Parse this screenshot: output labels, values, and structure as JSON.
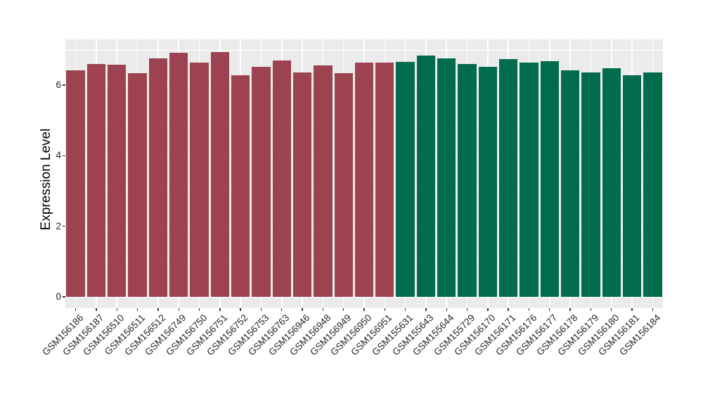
{
  "chart_data": {
    "type": "bar",
    "title": "",
    "xlabel": "",
    "ylabel": "Expression Level",
    "ylim": [
      -0.32,
      7.3
    ],
    "y_major_ticks": [
      0,
      2,
      4,
      6
    ],
    "y_minor_ticks": [
      1,
      3,
      5,
      7
    ],
    "grid": true,
    "legend": "none",
    "panel_bg": "#EBEBEB",
    "grid_color": "#FFFFFF",
    "bar_colors": [
      "#9C4251",
      "#006B4D"
    ],
    "bars": [
      {
        "label": "GSM156186",
        "value": 6.43,
        "group": 0
      },
      {
        "label": "GSM156187",
        "value": 6.6,
        "group": 0
      },
      {
        "label": "GSM156510",
        "value": 6.58,
        "group": 0
      },
      {
        "label": "GSM156511",
        "value": 6.35,
        "group": 0
      },
      {
        "label": "GSM156512",
        "value": 6.76,
        "group": 0
      },
      {
        "label": "GSM156749",
        "value": 6.93,
        "group": 0
      },
      {
        "label": "GSM156750",
        "value": 6.64,
        "group": 0
      },
      {
        "label": "GSM156751",
        "value": 6.94,
        "group": 0
      },
      {
        "label": "GSM156752",
        "value": 6.29,
        "group": 0
      },
      {
        "label": "GSM156753",
        "value": 6.53,
        "group": 0
      },
      {
        "label": "GSM156763",
        "value": 6.7,
        "group": 0
      },
      {
        "label": "GSM156946",
        "value": 6.37,
        "group": 0
      },
      {
        "label": "GSM156948",
        "value": 6.56,
        "group": 0
      },
      {
        "label": "GSM156949",
        "value": 6.35,
        "group": 0
      },
      {
        "label": "GSM156950",
        "value": 6.65,
        "group": 0
      },
      {
        "label": "GSM156951",
        "value": 6.65,
        "group": 0
      },
      {
        "label": "GSM155631",
        "value": 6.66,
        "group": 1
      },
      {
        "label": "GSM155643",
        "value": 6.84,
        "group": 1
      },
      {
        "label": "GSM155644",
        "value": 6.76,
        "group": 1
      },
      {
        "label": "GSM155729",
        "value": 6.6,
        "group": 1
      },
      {
        "label": "GSM156170",
        "value": 6.52,
        "group": 1
      },
      {
        "label": "GSM156171",
        "value": 6.74,
        "group": 1
      },
      {
        "label": "GSM156176",
        "value": 6.64,
        "group": 1
      },
      {
        "label": "GSM156177",
        "value": 6.68,
        "group": 1
      },
      {
        "label": "GSM156178",
        "value": 6.43,
        "group": 1
      },
      {
        "label": "GSM156179",
        "value": 6.37,
        "group": 1
      },
      {
        "label": "GSM156180",
        "value": 6.48,
        "group": 1
      },
      {
        "label": "GSM156181",
        "value": 6.28,
        "group": 1
      },
      {
        "label": "GSM156184",
        "value": 6.37,
        "group": 1
      }
    ]
  }
}
